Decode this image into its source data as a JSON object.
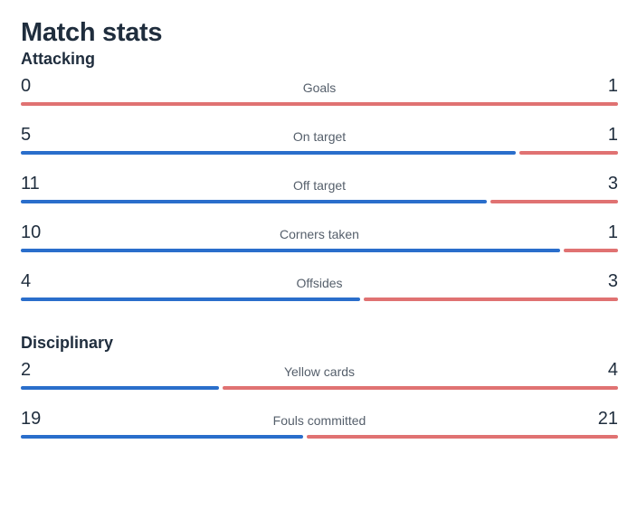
{
  "page_title": "Match stats",
  "colors": {
    "home": "#2a6ecb",
    "away": "#e07272"
  },
  "sections": [
    {
      "title": "Attacking",
      "stats": [
        {
          "label": "Goals",
          "home": "0",
          "away": "1"
        },
        {
          "label": "On target",
          "home": "5",
          "away": "1"
        },
        {
          "label": "Off target",
          "home": "11",
          "away": "3"
        },
        {
          "label": "Corners taken",
          "home": "10",
          "away": "1"
        },
        {
          "label": "Offsides",
          "home": "4",
          "away": "3"
        }
      ]
    },
    {
      "title": "Disciplinary",
      "stats": [
        {
          "label": "Yellow cards",
          "home": "2",
          "away": "4"
        },
        {
          "label": "Fouls committed",
          "home": "19",
          "away": "21"
        }
      ]
    }
  ]
}
